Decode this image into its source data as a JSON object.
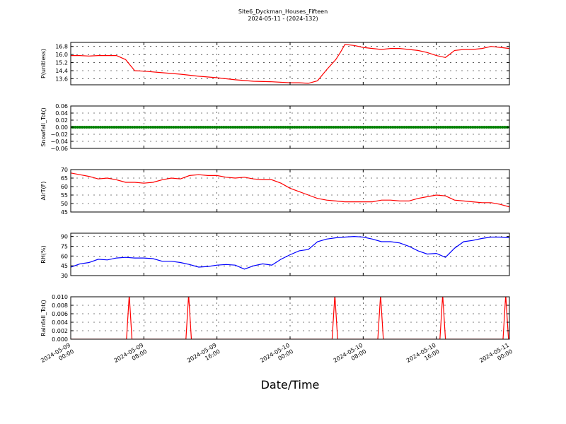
{
  "figure": {
    "title": "Site6_Dyckman_Houses_Fifteen",
    "subtitle": "2024-05-11 - (2024-132)",
    "xlabel": "Date/Time"
  },
  "chart_data": [
    {
      "type": "line",
      "ylabel": "P(unitless)",
      "ylim": [
        13.0,
        17.2
      ],
      "yticks": [
        13.6,
        14.4,
        15.2,
        16.0,
        16.8
      ],
      "ytick_labels": [
        "13.6",
        "14.4",
        "15.2",
        "16.0",
        "16.8"
      ],
      "xlim": [
        0,
        48
      ],
      "grid": true,
      "series": [
        {
          "color": "#ff0000",
          "x": [
            0,
            1,
            2,
            3,
            5,
            6,
            7,
            8,
            10,
            12,
            14,
            16,
            18,
            20,
            22,
            24,
            25,
            26,
            27,
            28,
            29,
            29.5,
            30,
            31,
            32,
            33,
            34,
            35,
            36,
            37,
            38,
            39,
            40,
            41,
            42,
            43,
            44,
            45,
            46,
            47,
            48
          ],
          "y": [
            15.9,
            15.9,
            15.85,
            15.9,
            15.9,
            15.5,
            14.4,
            14.35,
            14.2,
            14.05,
            13.85,
            13.7,
            13.5,
            13.35,
            13.3,
            13.2,
            13.2,
            13.15,
            13.4,
            14.5,
            15.5,
            16.2,
            17.0,
            16.9,
            16.7,
            16.6,
            16.5,
            16.6,
            16.6,
            16.5,
            16.4,
            16.2,
            15.9,
            15.7,
            16.4,
            16.5,
            16.5,
            16.6,
            16.8,
            16.7,
            16.6
          ]
        }
      ]
    },
    {
      "type": "scatter",
      "ylabel": "Snowfall_Tot()",
      "ylim": [
        -0.06,
        0.06
      ],
      "yticks": [
        -0.06,
        -0.04,
        -0.02,
        0.0,
        0.02,
        0.04,
        0.06
      ],
      "ytick_labels": [
        "−0.06",
        "−0.04",
        "−0.02",
        "0.00",
        "0.02",
        "0.04",
        "0.06"
      ],
      "xlim": [
        0,
        48
      ],
      "grid": true,
      "series": [
        {
          "color": "#008000",
          "x_start": 0,
          "x_end": 48,
          "x_step": 0.25,
          "y_constant": 0.0
        }
      ]
    },
    {
      "type": "line",
      "ylabel": "AirT(F)",
      "ylim": [
        45,
        70
      ],
      "yticks": [
        45,
        50,
        55,
        60,
        65,
        70
      ],
      "ytick_labels": [
        "45",
        "50",
        "55",
        "60",
        "65",
        "70"
      ],
      "xlim": [
        0,
        48
      ],
      "grid": true,
      "series": [
        {
          "color": "#ff0000",
          "x": [
            0,
            1,
            2,
            3,
            4,
            5,
            6,
            7,
            8,
            9,
            10,
            11,
            12,
            13,
            14,
            15,
            16,
            17,
            18,
            19,
            20,
            21,
            22,
            23,
            24,
            25,
            26,
            27,
            28,
            29,
            30,
            31,
            32,
            33,
            34,
            35,
            36,
            37,
            38,
            39,
            40,
            41,
            42,
            43,
            44,
            45,
            46,
            47,
            48
          ],
          "y": [
            68,
            67,
            66,
            64.5,
            65,
            64,
            62.5,
            62.5,
            62,
            62.5,
            64,
            65,
            64.5,
            66.5,
            67,
            66.5,
            66.5,
            65.5,
            65,
            65.5,
            64.5,
            64,
            64,
            62,
            59,
            57,
            55,
            53,
            52,
            51.5,
            51,
            51,
            51,
            51,
            52,
            52,
            51.5,
            51.5,
            53,
            54,
            55,
            54.5,
            52,
            51.5,
            51,
            50.5,
            50.5,
            49.5,
            48
          ]
        }
      ]
    },
    {
      "type": "line",
      "ylabel": "RH(%)",
      "ylim": [
        30,
        95
      ],
      "yticks": [
        30,
        45,
        60,
        75,
        90
      ],
      "ytick_labels": [
        "30",
        "45",
        "60",
        "75",
        "90"
      ],
      "xlim": [
        0,
        48
      ],
      "grid": true,
      "series": [
        {
          "color": "#0000ff",
          "x": [
            0,
            1,
            2,
            3,
            4,
            5,
            6,
            7,
            8,
            9,
            10,
            11,
            12,
            13,
            14,
            15,
            16,
            17,
            18,
            19,
            20,
            21,
            22,
            23,
            24,
            25,
            26,
            27,
            28,
            29,
            30,
            31,
            32,
            33,
            34,
            35,
            36,
            37,
            38,
            39,
            40,
            41,
            42,
            43,
            44,
            45,
            46,
            47,
            48
          ],
          "y": [
            43,
            48,
            50,
            55,
            54,
            57,
            58,
            57,
            57,
            56,
            52,
            52,
            50,
            47,
            43,
            44,
            46,
            47,
            46,
            40,
            45,
            48,
            46,
            55,
            62,
            68,
            70,
            82,
            86,
            88,
            89,
            90,
            89,
            86,
            82,
            82,
            80,
            75,
            68,
            63,
            64,
            58,
            72,
            82,
            84,
            87,
            89,
            89,
            88
          ]
        }
      ]
    },
    {
      "type": "line",
      "ylabel": "Rainfall_Tot()",
      "ylim": [
        0.0,
        0.01
      ],
      "yticks": [
        0.0,
        0.002,
        0.004,
        0.006,
        0.008,
        0.01
      ],
      "ytick_labels": [
        "0.000",
        "0.002",
        "0.004",
        "0.006",
        "0.008",
        "0.010"
      ],
      "xlim": [
        0,
        48
      ],
      "grid": true,
      "series": [
        {
          "color": "#ff0000",
          "x": [
            0,
            6.1,
            6.4,
            6.7,
            12.6,
            12.9,
            13.2,
            28.6,
            28.9,
            29.2,
            33.6,
            33.9,
            34.2,
            40.4,
            40.7,
            41.0,
            47.3,
            47.6,
            47.9,
            48
          ],
          "y": [
            0,
            0,
            0.0105,
            0,
            0,
            0.0105,
            0,
            0,
            0.0105,
            0,
            0,
            0.0105,
            0,
            0,
            0.0105,
            0,
            0,
            0.0105,
            0,
            0
          ]
        }
      ]
    }
  ],
  "x_axis": {
    "ticks": [
      0,
      8,
      16,
      24,
      32,
      40,
      48
    ],
    "tick_labels": [
      [
        "2024-05-09",
        "00:00"
      ],
      [
        "2024-05-09",
        "08:00"
      ],
      [
        "2024-05-09",
        "16:00"
      ],
      [
        "2024-05-10",
        "00:00"
      ],
      [
        "2024-05-10",
        "08:00"
      ],
      [
        "2024-05-10",
        "16:00"
      ],
      [
        "2024-05-11",
        "00:00"
      ]
    ]
  }
}
